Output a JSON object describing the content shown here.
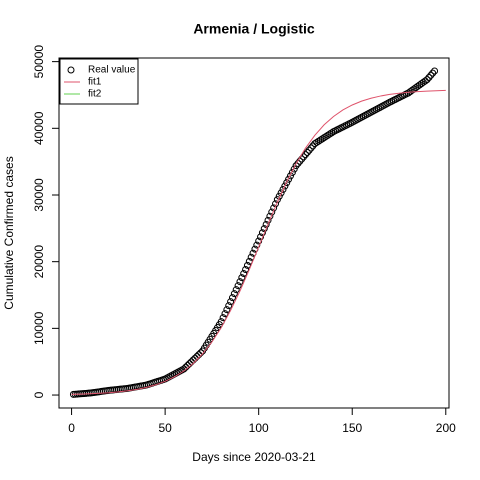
{
  "chart_data": {
    "type": "scatter",
    "title": "Armenia / Logistic",
    "xlabel": "Days since 2020-03-21",
    "ylabel": "Cumulative Confirmed cases",
    "xlim": [
      -6.72,
      201.72
    ],
    "ylim": [
      -1944,
      50544
    ],
    "xticks": [
      0,
      50,
      100,
      150,
      200
    ],
    "yticks": [
      0,
      10000,
      20000,
      30000,
      40000,
      50000
    ],
    "legend": "top-left",
    "series": [
      {
        "name": "Real value",
        "color": "#000000",
        "type": "points",
        "x": [
          1,
          2,
          3,
          4,
          5,
          6,
          7,
          8,
          9,
          10,
          11,
          12,
          13,
          14,
          15,
          16,
          17,
          18,
          19,
          20,
          21,
          22,
          23,
          24,
          25,
          26,
          27,
          28,
          29,
          30,
          31,
          32,
          33,
          34,
          35,
          36,
          37,
          38,
          39,
          40,
          41,
          42,
          43,
          44,
          45,
          46,
          47,
          48,
          49,
          50,
          51,
          52,
          53,
          54,
          55,
          56,
          57,
          58,
          59,
          60,
          61,
          62,
          63,
          64,
          65,
          66,
          67,
          68,
          69,
          70,
          71,
          72,
          73,
          74,
          75,
          76,
          77,
          78,
          79,
          80,
          81,
          82,
          83,
          84,
          85,
          86,
          87,
          88,
          89,
          90,
          91,
          92,
          93,
          94,
          95,
          96,
          97,
          98,
          99,
          100,
          101,
          102,
          103,
          104,
          105,
          106,
          107,
          108,
          109,
          110,
          111,
          112,
          113,
          114,
          115,
          116,
          117,
          118,
          119,
          120,
          121,
          122,
          123,
          124,
          125,
          126,
          127,
          128,
          129,
          130,
          131,
          132,
          133,
          134,
          135,
          136,
          137,
          138,
          139,
          140,
          141,
          142,
          143,
          144,
          145,
          146,
          147,
          148,
          149,
          150,
          151,
          152,
          153,
          154,
          155,
          156,
          157,
          158,
          159,
          160,
          161,
          162,
          163,
          164,
          165,
          166,
          167,
          168,
          169,
          170,
          171,
          172,
          173,
          174,
          175,
          176,
          177,
          178,
          179,
          180,
          181,
          182,
          183,
          184,
          185,
          186,
          187,
          188,
          189,
          190,
          191,
          192,
          193,
          194
        ],
        "values": [
          100,
          122,
          144,
          167,
          189,
          211,
          233,
          256,
          278,
          300,
          340,
          380,
          420,
          460,
          500,
          540,
          580,
          620,
          660,
          700,
          730,
          760,
          790,
          820,
          850,
          880,
          910,
          940,
          970,
          1000,
          1050,
          1100,
          1150,
          1200,
          1250,
          1300,
          1350,
          1400,
          1450,
          1500,
          1590,
          1680,
          1770,
          1860,
          1950,
          2040,
          2130,
          2220,
          2310,
          2400,
          2550,
          2700,
          2850,
          3000,
          3150,
          3300,
          3450,
          3600,
          3750,
          3900,
          4170,
          4440,
          4710,
          4980,
          5250,
          5520,
          5790,
          6060,
          6330,
          6600,
          7040,
          7480,
          7920,
          8360,
          8800,
          9240,
          9680,
          10120,
          10560,
          11000,
          11600,
          12200,
          12800,
          13400,
          14000,
          14600,
          15200,
          15800,
          16400,
          17000,
          17610,
          18220,
          18830,
          19440,
          20050,
          20660,
          21270,
          21880,
          22490,
          23100,
          23720,
          24340,
          24960,
          25580,
          26200,
          26820,
          27440,
          28060,
          28680,
          29300,
          29810,
          30320,
          30830,
          31340,
          31850,
          32360,
          32870,
          33380,
          33890,
          34400,
          34730,
          35060,
          35390,
          35720,
          36050,
          36380,
          36710,
          37040,
          37370,
          37700,
          37880,
          38060,
          38240,
          38420,
          38600,
          38780,
          38960,
          39140,
          39320,
          39500,
          39640,
          39780,
          39920,
          40060,
          40200,
          40340,
          40480,
          40620,
          40760,
          40900,
          41050,
          41200,
          41350,
          41500,
          41650,
          41800,
          41950,
          42100,
          42250,
          42400,
          42550,
          42700,
          42850,
          43000,
          43150,
          43300,
          43450,
          43600,
          43750,
          43900,
          44040,
          44180,
          44320,
          44460,
          44600,
          44740,
          44880,
          45020,
          45160,
          45300,
          45500,
          45700,
          45900,
          46100,
          46300,
          46500,
          46700,
          46900,
          47100,
          47300,
          47625,
          47950,
          48275,
          48600
        ]
      },
      {
        "name": "fit1",
        "color": "#df536b",
        "type": "line",
        "x": [
          0,
          5,
          10,
          15,
          20,
          25,
          30,
          35,
          40,
          45,
          50,
          55,
          60,
          65,
          70,
          75,
          80,
          85,
          90,
          95,
          100,
          105,
          110,
          115,
          120,
          125,
          130,
          135,
          140,
          145,
          150,
          155,
          160,
          165,
          170,
          175,
          180,
          185,
          190,
          195,
          200
        ],
        "values": [
          107,
          144,
          194,
          262,
          352,
          474,
          638,
          856,
          1148,
          1537,
          2054,
          2726,
          3606,
          4736,
          6172,
          7951,
          10110,
          12687,
          15605,
          18824,
          22212,
          25630,
          28932,
          31983,
          34697,
          37025,
          38946,
          40531,
          41777,
          42748,
          43499,
          44073,
          44509,
          44836,
          45083,
          45266,
          45403,
          45506,
          45581,
          45638,
          45680
        ]
      },
      {
        "name": "fit2",
        "color": "#61d04f",
        "type": "line"
      }
    ]
  }
}
